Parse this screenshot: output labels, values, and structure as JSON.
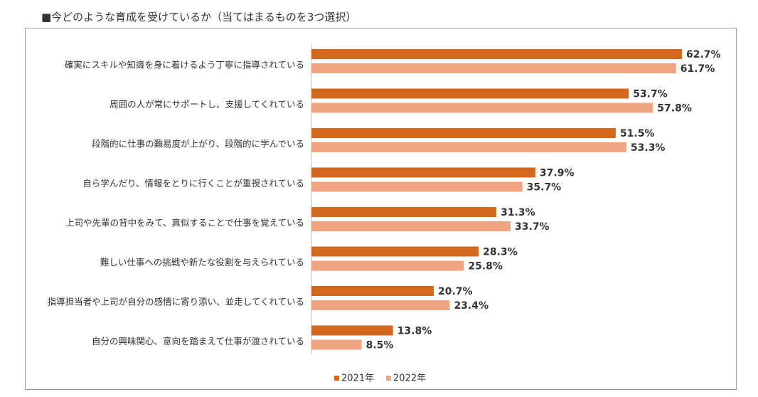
{
  "title": "■今どのような育成を受けているか（当てはまるものを3つ選択）",
  "chart_data": {
    "type": "bar",
    "orientation": "horizontal",
    "unit": "%",
    "categories": [
      "確実にスキルや知識を身に着けるよう丁寧に指導されている",
      "周囲の人が常にサポートし、支援してくれている",
      "段階的に仕事の難易度が上がり、段階的に学んでいる",
      "自ら学んだり、情報をとりに行くことが重視されている",
      "上司や先輩の背中をみて、真似することで仕事を覚えている",
      "難しい仕事への挑戦や新たな役割を与えられている",
      "指導担当者や上司が自分の感情に寄り添い、並走してくれている",
      "自分の興味関心、意向を踏まえて仕事が渡されている"
    ],
    "series": [
      {
        "name": "2021年",
        "color": "#d2691e",
        "values": [
          62.7,
          53.7,
          51.5,
          37.9,
          31.3,
          28.3,
          20.7,
          13.8
        ],
        "labels": [
          "62.7%",
          "53.7%",
          "51.5%",
          "37.9%",
          "31.3%",
          "28.3%",
          "20.7%",
          "13.8%"
        ]
      },
      {
        "name": "2022年",
        "color": "#f0a482",
        "values": [
          61.7,
          57.8,
          53.3,
          35.7,
          33.7,
          25.8,
          23.4,
          8.5
        ],
        "labels": [
          "61.7%",
          "57.8%",
          "53.3%",
          "35.7%",
          "33.7%",
          "25.8%",
          "23.4%",
          "8.5%"
        ]
      }
    ],
    "xlim": [
      0,
      70
    ],
    "grid": false,
    "legend_position": "bottom"
  }
}
